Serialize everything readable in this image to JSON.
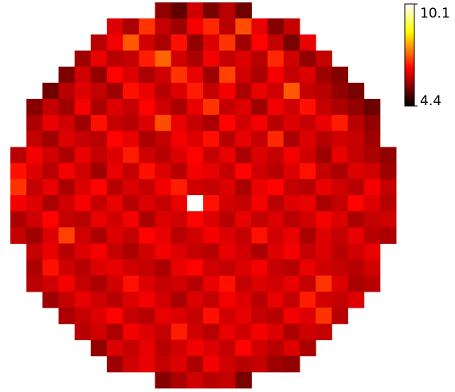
{
  "chart_data": {
    "type": "heatmap",
    "colormap": "hot",
    "clim": [
      4.4,
      10.1
    ],
    "colorbar_ticks": [
      4.4,
      10.1
    ],
    "values": [
      [
        null,
        null,
        null,
        null,
        null,
        null,
        null,
        null,
        null,
        5.6,
        5.2,
        6.1,
        5.4,
        5.9,
        5.3,
        null,
        null,
        null,
        null,
        null,
        null,
        null,
        null,
        null
      ],
      [
        null,
        null,
        null,
        null,
        null,
        null,
        6.2,
        5.8,
        6.9,
        6.0,
        5.7,
        6.4,
        6.8,
        5.9,
        7.1,
        6.3,
        5.5,
        6.0,
        null,
        null,
        null,
        null,
        null,
        null
      ],
      [
        null,
        null,
        null,
        null,
        null,
        5.9,
        6.4,
        7.2,
        6.1,
        5.8,
        6.6,
        5.6,
        6.2,
        6.9,
        5.7,
        6.5,
        6.0,
        5.4,
        6.3,
        null,
        null,
        null,
        null,
        null
      ],
      [
        null,
        null,
        null,
        null,
        5.7,
        6.3,
        5.9,
        6.0,
        6.7,
        7.3,
        6.1,
        5.8,
        6.4,
        6.0,
        6.2,
        5.9,
        6.8,
        6.1,
        5.6,
        6.0,
        null,
        null,
        null,
        null
      ],
      [
        null,
        null,
        null,
        5.4,
        6.1,
        5.6,
        6.5,
        6.2,
        5.8,
        6.1,
        6.9,
        6.3,
        5.7,
        7.0,
        6.1,
        5.8,
        6.4,
        6.0,
        6.2,
        5.7,
        5.5,
        null,
        null,
        null
      ],
      [
        null,
        null,
        5.3,
        5.9,
        6.2,
        6.0,
        5.7,
        6.6,
        6.3,
        5.9,
        6.2,
        6.7,
        6.0,
        6.4,
        5.8,
        6.3,
        6.1,
        7.2,
        6.0,
        5.9,
        5.6,
        5.4,
        null,
        null
      ],
      [
        null,
        5.5,
        6.0,
        5.7,
        6.4,
        5.8,
        6.2,
        6.0,
        6.5,
        6.1,
        5.8,
        6.3,
        6.9,
        6.0,
        6.2,
        5.7,
        6.4,
        6.1,
        6.6,
        6.0,
        5.8,
        5.6,
        5.3,
        null
      ],
      [
        null,
        5.8,
        6.3,
        6.1,
        5.7,
        6.6,
        6.0,
        5.9,
        6.2,
        7.1,
        6.3,
        6.0,
        5.8,
        6.5,
        6.1,
        6.4,
        5.9,
        6.2,
        6.0,
        6.3,
        6.7,
        5.9,
        5.6,
        null
      ],
      [
        null,
        6.0,
        5.7,
        6.2,
        6.0,
        5.9,
        6.5,
        6.3,
        5.8,
        6.0,
        6.4,
        6.2,
        6.6,
        5.9,
        6.3,
        6.0,
        6.8,
        5.8,
        6.2,
        5.9,
        6.1,
        6.0,
        5.7,
        null
      ],
      [
        5.9,
        6.4,
        6.1,
        5.8,
        6.3,
        6.0,
        6.2,
        6.7,
        6.1,
        5.9,
        6.2,
        6.5,
        6.0,
        6.3,
        5.8,
        6.2,
        6.0,
        6.4,
        6.1,
        5.7,
        6.3,
        6.0,
        5.8,
        5.6
      ],
      [
        6.6,
        6.2,
        5.9,
        6.4,
        6.1,
        5.7,
        6.3,
        6.0,
        6.6,
        6.2,
        5.9,
        6.4,
        6.3,
        6.0,
        6.5,
        6.1,
        5.9,
        6.2,
        6.6,
        6.0,
        5.8,
        6.2,
        6.1,
        5.7
      ],
      [
        6.9,
        6.0,
        6.3,
        5.8,
        6.2,
        6.5,
        5.9,
        6.2,
        6.0,
        6.4,
        6.7,
        6.1,
        6.0,
        6.2,
        5.8,
        6.3,
        6.5,
        6.0,
        5.9,
        6.3,
        6.1,
        5.9,
        6.4,
        6.0
      ],
      [
        6.4,
        6.2,
        5.8,
        6.1,
        6.4,
        6.0,
        6.3,
        5.9,
        6.2,
        6.0,
        6.3,
        10.1,
        6.6,
        6.1,
        6.0,
        6.4,
        5.9,
        6.2,
        6.3,
        5.8,
        6.0,
        6.5,
        6.2,
        5.9
      ],
      [
        5.8,
        6.1,
        6.5,
        6.0,
        5.9,
        6.3,
        6.1,
        6.4,
        5.8,
        6.2,
        6.1,
        6.5,
        6.2,
        5.9,
        6.3,
        6.0,
        6.2,
        5.9,
        6.1,
        6.4,
        6.2,
        5.8,
        6.0,
        6.1
      ],
      [
        6.0,
        5.7,
        6.2,
        7.0,
        6.1,
        5.8,
        6.2,
        6.0,
        6.5,
        6.3,
        5.9,
        6.1,
        6.4,
        6.2,
        6.0,
        6.6,
        6.1,
        6.3,
        5.8,
        6.2,
        6.0,
        6.3,
        5.9,
        5.8
      ],
      [
        null,
        6.0,
        6.3,
        5.9,
        6.2,
        6.4,
        6.0,
        5.8,
        6.1,
        6.4,
        6.2,
        6.0,
        5.9,
        6.3,
        6.1,
        5.8,
        6.2,
        6.4,
        6.0,
        6.2,
        5.9,
        6.1,
        6.3,
        null
      ],
      [
        null,
        5.8,
        6.6,
        6.1,
        5.9,
        6.2,
        6.3,
        6.1,
        6.0,
        5.8,
        6.3,
        6.5,
        6.1,
        6.0,
        6.2,
        6.4,
        6.0,
        5.9,
        6.3,
        6.1,
        6.0,
        5.9,
        6.1,
        null
      ],
      [
        null,
        5.9,
        6.1,
        6.4,
        6.0,
        5.8,
        6.1,
        6.6,
        6.2,
        6.0,
        6.1,
        5.9,
        6.3,
        6.6,
        6.0,
        6.2,
        6.1,
        6.3,
        6.0,
        6.9,
        6.2,
        5.8,
        5.9,
        null
      ],
      [
        null,
        null,
        5.7,
        6.0,
        6.3,
        6.1,
        5.9,
        6.2,
        6.4,
        6.1,
        5.8,
        6.2,
        6.0,
        6.4,
        6.2,
        5.9,
        6.3,
        6.0,
        6.7,
        6.1,
        6.0,
        6.2,
        null,
        null
      ],
      [
        null,
        null,
        null,
        5.8,
        6.0,
        6.2,
        6.5,
        6.0,
        5.9,
        6.3,
        6.2,
        6.0,
        6.6,
        6.1,
        6.3,
        6.0,
        5.9,
        6.4,
        6.2,
        6.9,
        5.9,
        null,
        null,
        null
      ],
      [
        null,
        null,
        null,
        null,
        5.9,
        6.1,
        5.8,
        6.4,
        6.2,
        6.0,
        6.7,
        6.1,
        5.9,
        6.3,
        6.1,
        6.4,
        6.2,
        5.8,
        6.1,
        6.0,
        null,
        null,
        null,
        null
      ],
      [
        null,
        null,
        null,
        null,
        null,
        5.6,
        6.2,
        6.0,
        6.3,
        5.9,
        6.1,
        6.4,
        6.2,
        6.0,
        6.5,
        6.1,
        5.9,
        6.2,
        5.8,
        null,
        null,
        null,
        null,
        null
      ],
      [
        null,
        null,
        null,
        null,
        null,
        null,
        5.7,
        6.1,
        6.3,
        6.0,
        6.2,
        5.8,
        6.4,
        6.1,
        5.9,
        6.0,
        5.7,
        5.6,
        null,
        null,
        null,
        null,
        null,
        null
      ],
      [
        null,
        null,
        null,
        null,
        null,
        null,
        null,
        null,
        null,
        5.5,
        5.8,
        6.1,
        5.9,
        6.0,
        5.4,
        null,
        null,
        null,
        null,
        null,
        null,
        null,
        null,
        null
      ]
    ]
  }
}
